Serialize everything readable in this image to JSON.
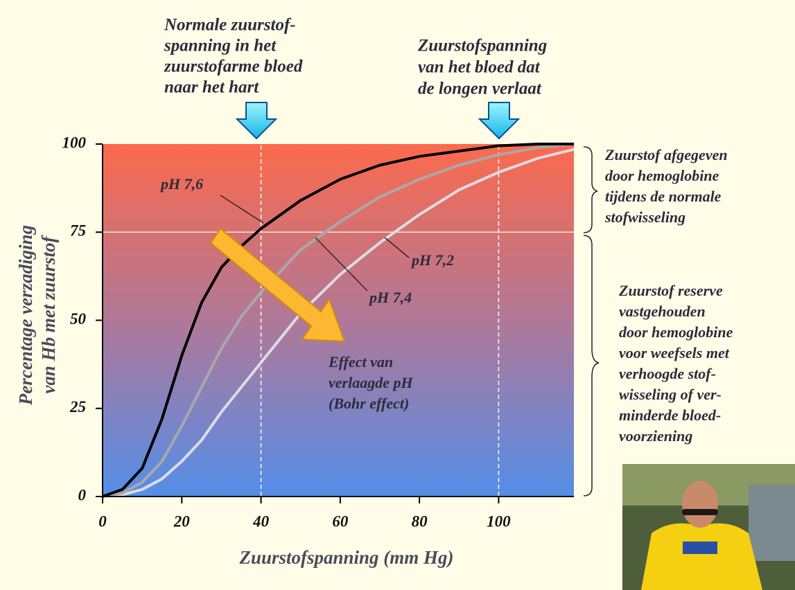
{
  "chart_data": {
    "type": "line",
    "xlabel": "Zuurstofspanning (mm Hg)",
    "ylabel": [
      "Percentage verzadiging",
      "van Hb met zuurstof"
    ],
    "x": [
      0,
      5,
      10,
      15,
      20,
      25,
      30,
      35,
      40,
      50,
      60,
      70,
      80,
      90,
      100,
      110,
      119
    ],
    "series": [
      {
        "name": "pH 7,6",
        "color": "#000000",
        "values": [
          0,
          2,
          8,
          22,
          40,
          55,
          65,
          71,
          76,
          84,
          90,
          94,
          96.5,
          98,
          99.5,
          100,
          100
        ]
      },
      {
        "name": "pH 7,4",
        "color": "#a8a8aa",
        "values": [
          0,
          1,
          4,
          10,
          20,
          31,
          42,
          51,
          58,
          70,
          78,
          85,
          90,
          94,
          97,
          99,
          100
        ]
      },
      {
        "name": "pH 7,2",
        "color": "#dcdce4",
        "values": [
          0,
          0.5,
          2,
          5,
          10,
          16,
          24,
          31,
          38,
          52,
          63,
          72,
          80,
          87,
          92,
          96,
          98.5
        ]
      }
    ],
    "xlim": [
      0,
      119
    ],
    "ylim": [
      0,
      100
    ],
    "xticks": [
      0,
      20,
      40,
      60,
      80,
      100
    ],
    "yticks": [
      0,
      25,
      50,
      75,
      100
    ],
    "vlines": [
      40,
      100
    ],
    "hlines": [
      75
    ],
    "annotations": {
      "venous": [
        "Normale zuurstof-",
        "spanning in het",
        "zuurstofarme bloed",
        "naar het hart"
      ],
      "arterial": [
        "Zuurstofspanning",
        "van het bloed dat",
        "de longen verlaat"
      ],
      "released": [
        "Zuurstof afgegeven",
        "door hemoglobine",
        "tijdens de normale",
        "stofwisseling"
      ],
      "reserve": [
        "Zuurstof reserve",
        "vastgehouden",
        "door hemoglobine",
        "voor weefsels met",
        "verhoogde stof-",
        "wisseling of ver-",
        "minderde bloed-",
        "voorziening"
      ],
      "bohr": [
        "Effect van",
        "verlaagde pH",
        "(Bohr effect)"
      ]
    }
  }
}
